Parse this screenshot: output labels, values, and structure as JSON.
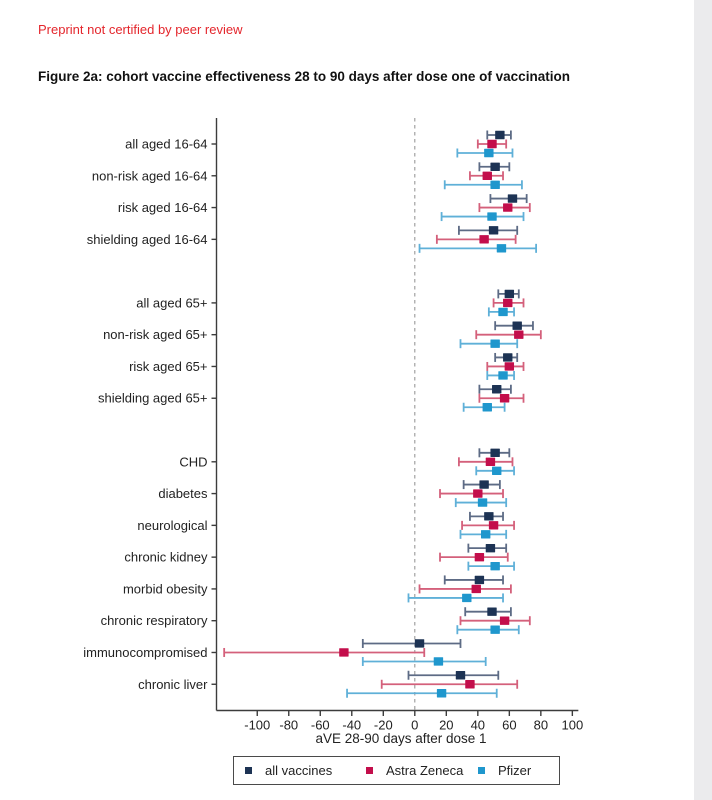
{
  "page": {
    "preprint_notice": "Preprint not certified by peer review",
    "figure_title": "Figure 2a: cohort vaccine effectiveness 28 to 90 days after dose one of vaccination"
  },
  "colors": {
    "notice_red": "#e4262c",
    "axis": "#3c3c3c",
    "tick_text": "#222222",
    "zero_line": "#999999",
    "page_edge_strip": "#ebebed",
    "series": {
      "all": {
        "marker": "#1d3354",
        "line": "#5d6b85"
      },
      "az": {
        "marker": "#c30e4b",
        "line": "#d4607b"
      },
      "pfizer": {
        "marker": "#1f97cd",
        "line": "#5fb0d8"
      }
    }
  },
  "chart_data": {
    "type": "scatter",
    "subtype": "forest-plot-with-ci",
    "xlabel": "aVE 28-90 days after dose 1",
    "x_ticks": [
      -100,
      -80,
      -60,
      -40,
      -20,
      0,
      20,
      40,
      60,
      80,
      100
    ],
    "xlim": [
      -125,
      103
    ],
    "reference_line_x": 0,
    "grid": false,
    "legend_position": "bottom",
    "series_order": [
      "all",
      "az",
      "pfizer"
    ],
    "series_names": {
      "all": "all vaccines",
      "az": "Astra Zeneca",
      "pfizer": "Pfizer"
    },
    "groups": [
      {
        "categories": [
          {
            "label": "all aged 16-64",
            "all": {
              "est": 54,
              "lo": 46,
              "hi": 61
            },
            "az": {
              "est": 49,
              "lo": 40,
              "hi": 58
            },
            "pfizer": {
              "est": 47,
              "lo": 27,
              "hi": 62
            }
          },
          {
            "label": "non-risk aged 16-64",
            "all": {
              "est": 51,
              "lo": 41,
              "hi": 60
            },
            "az": {
              "est": 46,
              "lo": 35,
              "hi": 56
            },
            "pfizer": {
              "est": 51,
              "lo": 19,
              "hi": 68
            }
          },
          {
            "label": "risk aged 16-64",
            "all": {
              "est": 62,
              "lo": 48,
              "hi": 71
            },
            "az": {
              "est": 59,
              "lo": 41,
              "hi": 73
            },
            "pfizer": {
              "est": 49,
              "lo": 17,
              "hi": 69
            }
          },
          {
            "label": "shielding aged 16-64",
            "all": {
              "est": 50,
              "lo": 28,
              "hi": 65
            },
            "az": {
              "est": 44,
              "lo": 14,
              "hi": 64
            },
            "pfizer": {
              "est": 55,
              "lo": 3,
              "hi": 77
            }
          }
        ]
      },
      {
        "categories": [
          {
            "label": "all aged 65+",
            "all": {
              "est": 60,
              "lo": 53,
              "hi": 66
            },
            "az": {
              "est": 59,
              "lo": 50,
              "hi": 69
            },
            "pfizer": {
              "est": 56,
              "lo": 47,
              "hi": 63
            }
          },
          {
            "label": "non-risk aged 65+",
            "all": {
              "est": 65,
              "lo": 51,
              "hi": 75
            },
            "az": {
              "est": 66,
              "lo": 39,
              "hi": 80
            },
            "pfizer": {
              "est": 51,
              "lo": 29,
              "hi": 65
            }
          },
          {
            "label": "risk aged 65+",
            "all": {
              "est": 59,
              "lo": 51,
              "hi": 65
            },
            "az": {
              "est": 60,
              "lo": 46,
              "hi": 69
            },
            "pfizer": {
              "est": 56,
              "lo": 46,
              "hi": 63
            }
          },
          {
            "label": "shielding aged 65+",
            "all": {
              "est": 52,
              "lo": 41,
              "hi": 61
            },
            "az": {
              "est": 57,
              "lo": 41,
              "hi": 69
            },
            "pfizer": {
              "est": 46,
              "lo": 31,
              "hi": 57
            }
          }
        ]
      },
      {
        "categories": [
          {
            "label": "CHD",
            "all": {
              "est": 51,
              "lo": 41,
              "hi": 60
            },
            "az": {
              "est": 48,
              "lo": 28,
              "hi": 62
            },
            "pfizer": {
              "est": 52,
              "lo": 39,
              "hi": 63
            }
          },
          {
            "label": "diabetes",
            "all": {
              "est": 44,
              "lo": 31,
              "hi": 54
            },
            "az": {
              "est": 40,
              "lo": 16,
              "hi": 56
            },
            "pfizer": {
              "est": 43,
              "lo": 26,
              "hi": 58
            }
          },
          {
            "label": "neurological",
            "all": {
              "est": 47,
              "lo": 35,
              "hi": 56
            },
            "az": {
              "est": 50,
              "lo": 30,
              "hi": 63
            },
            "pfizer": {
              "est": 45,
              "lo": 29,
              "hi": 58
            }
          },
          {
            "label": "chronic kidney",
            "all": {
              "est": 48,
              "lo": 34,
              "hi": 58
            },
            "az": {
              "est": 41,
              "lo": 16,
              "hi": 59
            },
            "pfizer": {
              "est": 51,
              "lo": 34,
              "hi": 63
            }
          },
          {
            "label": "morbid obesity",
            "all": {
              "est": 41,
              "lo": 19,
              "hi": 56
            },
            "az": {
              "est": 39,
              "lo": 3,
              "hi": 61
            },
            "pfizer": {
              "est": 33,
              "lo": -4,
              "hi": 56
            }
          },
          {
            "label": "chronic respiratory",
            "all": {
              "est": 49,
              "lo": 32,
              "hi": 61
            },
            "az": {
              "est": 57,
              "lo": 29,
              "hi": 73
            },
            "pfizer": {
              "est": 51,
              "lo": 27,
              "hi": 66
            }
          },
          {
            "label": "immunocompromised",
            "all": {
              "est": 3,
              "lo": -33,
              "hi": 29
            },
            "az": {
              "est": -45,
              "lo": -121,
              "hi": 6
            },
            "pfizer": {
              "est": 15,
              "lo": -33,
              "hi": 45
            }
          },
          {
            "label": "chronic liver",
            "all": {
              "est": 29,
              "lo": -4,
              "hi": 53
            },
            "az": {
              "est": 35,
              "lo": -21,
              "hi": 65
            },
            "pfizer": {
              "est": 17,
              "lo": -43,
              "hi": 52
            }
          }
        ]
      }
    ]
  },
  "legend": {
    "items": [
      {
        "key": "all",
        "label": "all vaccines"
      },
      {
        "key": "az",
        "label": "Astra Zeneca"
      },
      {
        "key": "pfizer",
        "label": "Pfizer"
      }
    ]
  }
}
